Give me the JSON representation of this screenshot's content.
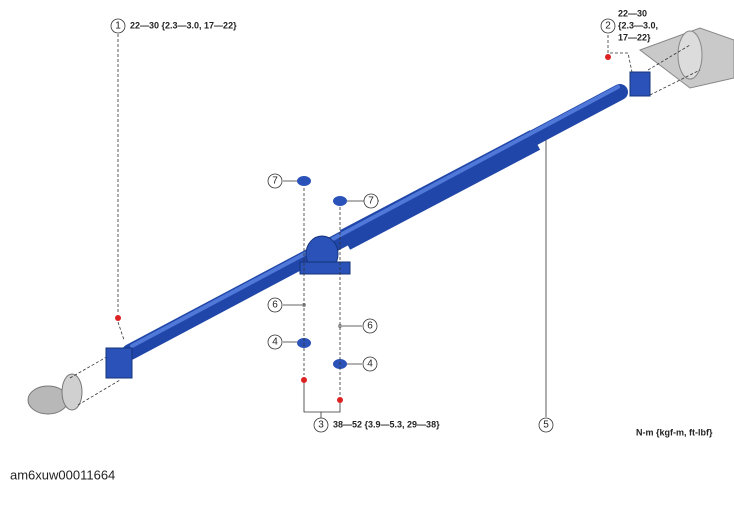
{
  "callouts": [
    {
      "number": 1,
      "torque": "22—30 {2.3—3.0, 17—22}"
    },
    {
      "number": 2,
      "torque": [
        "22—30",
        "{2.3—3.0,",
        "17—22}"
      ]
    },
    {
      "number": 3,
      "torque": "38—52 {3.9—5.3, 29—38}"
    },
    {
      "number": 4
    },
    {
      "number": 4
    },
    {
      "number": 5
    },
    {
      "number": 6
    },
    {
      "number": 6
    },
    {
      "number": 7
    },
    {
      "number": 7
    }
  ],
  "unit_note": "N-m {kgf-m, ft-lbf}",
  "figure_id": "am6xuw00011664"
}
